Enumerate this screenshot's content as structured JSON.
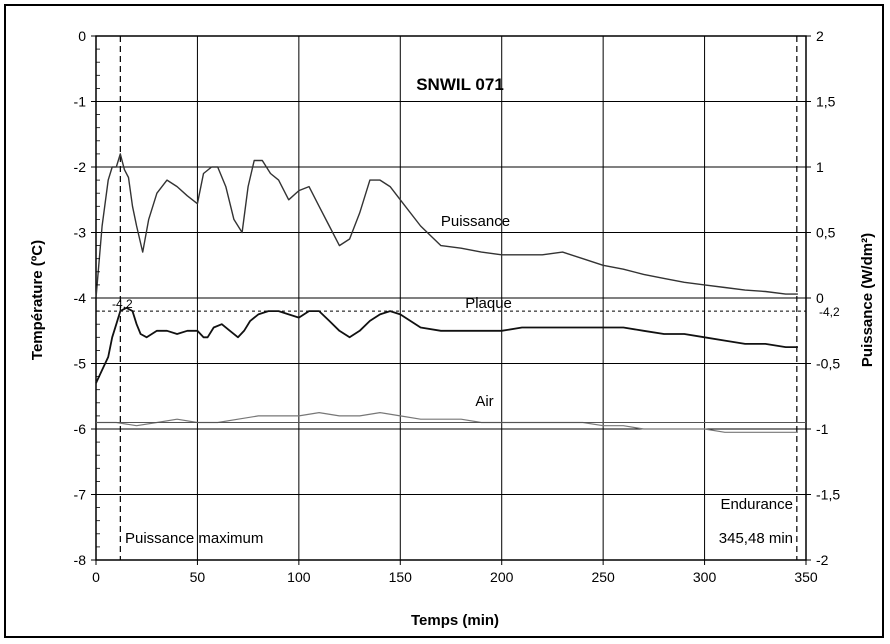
{
  "chart_data": {
    "type": "line",
    "title": "SNWIL 071",
    "xlabel": "Temps (min)",
    "ylabel": "Température (ºC)",
    "y2label": "Puissance (W/dm²)",
    "xlim": [
      0,
      350
    ],
    "ylim": [
      -8,
      0
    ],
    "y2lim": [
      -2,
      2
    ],
    "x_ticks": [
      "0",
      "50",
      "100",
      "150",
      "200",
      "250",
      "300",
      "350"
    ],
    "y_ticks": [
      "-8",
      "-7",
      "-6",
      "-5",
      "-4",
      "-3",
      "-2",
      "-1",
      "0"
    ],
    "y2_ticks": [
      "-2",
      "-1,5",
      "-1",
      "-0,5",
      "0",
      "0,5",
      "1",
      "1,5",
      "2"
    ],
    "grid": true,
    "reference_line": {
      "y": -4.2,
      "label_left": "-4,2",
      "label_right": "-4,2"
    },
    "vertical_markers": [
      {
        "x": 12,
        "label": "Puissance maximum"
      },
      {
        "x": 345.48,
        "label_line1": "Endurance",
        "label_line2": "345,48 min"
      }
    ],
    "series": [
      {
        "name": "Puissance",
        "axis": "right",
        "x": [
          0,
          3,
          6,
          8,
          10,
          12,
          14,
          16,
          18,
          20,
          23,
          26,
          30,
          35,
          40,
          45,
          50,
          53,
          57,
          60,
          64,
          68,
          72,
          75,
          78,
          82,
          86,
          90,
          95,
          100,
          105,
          110,
          115,
          120,
          125,
          130,
          135,
          140,
          145,
          150,
          160,
          170,
          180,
          190,
          200,
          210,
          220,
          230,
          240,
          250,
          260,
          270,
          280,
          290,
          300,
          310,
          320,
          330,
          340,
          346
        ],
        "y": [
          0,
          0.55,
          0.9,
          1.0,
          1.0,
          1.1,
          0.98,
          0.92,
          0.7,
          0.55,
          0.35,
          0.6,
          0.8,
          0.9,
          0.85,
          0.78,
          0.72,
          0.95,
          1.0,
          1.0,
          0.85,
          0.6,
          0.5,
          0.85,
          1.05,
          1.05,
          0.95,
          0.9,
          0.75,
          0.82,
          0.85,
          0.7,
          0.55,
          0.4,
          0.45,
          0.65,
          0.9,
          0.9,
          0.85,
          0.75,
          0.55,
          0.4,
          0.38,
          0.35,
          0.33,
          0.33,
          0.33,
          0.35,
          0.3,
          0.25,
          0.22,
          0.18,
          0.15,
          0.12,
          0.1,
          0.08,
          0.06,
          0.05,
          0.03,
          0.03
        ]
      },
      {
        "name": "Plaque",
        "axis": "left",
        "x": [
          0,
          3,
          6,
          8,
          10,
          12,
          15,
          18,
          20,
          22,
          25,
          30,
          35,
          40,
          45,
          50,
          53,
          55,
          58,
          62,
          66,
          70,
          73,
          76,
          80,
          85,
          90,
          95,
          100,
          105,
          110,
          115,
          120,
          125,
          130,
          135,
          140,
          145,
          150,
          160,
          170,
          180,
          190,
          200,
          210,
          220,
          230,
          240,
          250,
          260,
          270,
          280,
          290,
          300,
          310,
          320,
          330,
          340,
          346
        ],
        "y": [
          -5.3,
          -5.1,
          -4.9,
          -4.6,
          -4.4,
          -4.2,
          -4.15,
          -4.2,
          -4.4,
          -4.55,
          -4.6,
          -4.5,
          -4.5,
          -4.55,
          -4.5,
          -4.5,
          -4.6,
          -4.6,
          -4.45,
          -4.4,
          -4.5,
          -4.6,
          -4.5,
          -4.35,
          -4.25,
          -4.2,
          -4.2,
          -4.25,
          -4.3,
          -4.2,
          -4.2,
          -4.35,
          -4.5,
          -4.6,
          -4.5,
          -4.35,
          -4.25,
          -4.2,
          -4.25,
          -4.45,
          -4.5,
          -4.5,
          -4.5,
          -4.5,
          -4.45,
          -4.45,
          -4.45,
          -4.45,
          -4.45,
          -4.45,
          -4.5,
          -4.55,
          -4.55,
          -4.6,
          -4.65,
          -4.7,
          -4.7,
          -4.75,
          -4.75
        ]
      },
      {
        "name": "Air",
        "axis": "left",
        "x": [
          0,
          10,
          20,
          30,
          40,
          50,
          60,
          70,
          80,
          90,
          100,
          110,
          120,
          130,
          140,
          150,
          160,
          170,
          180,
          190,
          200,
          210,
          220,
          230,
          240,
          250,
          260,
          270,
          280,
          290,
          300,
          310,
          320,
          330,
          340,
          346
        ],
        "y": [
          -5.9,
          -5.9,
          -5.95,
          -5.9,
          -5.85,
          -5.9,
          -5.9,
          -5.85,
          -5.8,
          -5.8,
          -5.8,
          -5.75,
          -5.8,
          -5.8,
          -5.75,
          -5.8,
          -5.85,
          -5.85,
          -5.85,
          -5.9,
          -5.9,
          -5.9,
          -5.9,
          -5.9,
          -5.9,
          -5.95,
          -5.95,
          -6.0,
          -6.0,
          -6.0,
          -6.0,
          -6.05,
          -6.05,
          -6.05,
          -6.05,
          -6.05
        ]
      }
    ],
    "series_labels": [
      {
        "text": "Puissance",
        "x": 170,
        "y": -2.9
      },
      {
        "text": "Plaque",
        "x": 182,
        "y": -4.15
      },
      {
        "text": "Air",
        "x": 187,
        "y": -5.65
      }
    ]
  }
}
